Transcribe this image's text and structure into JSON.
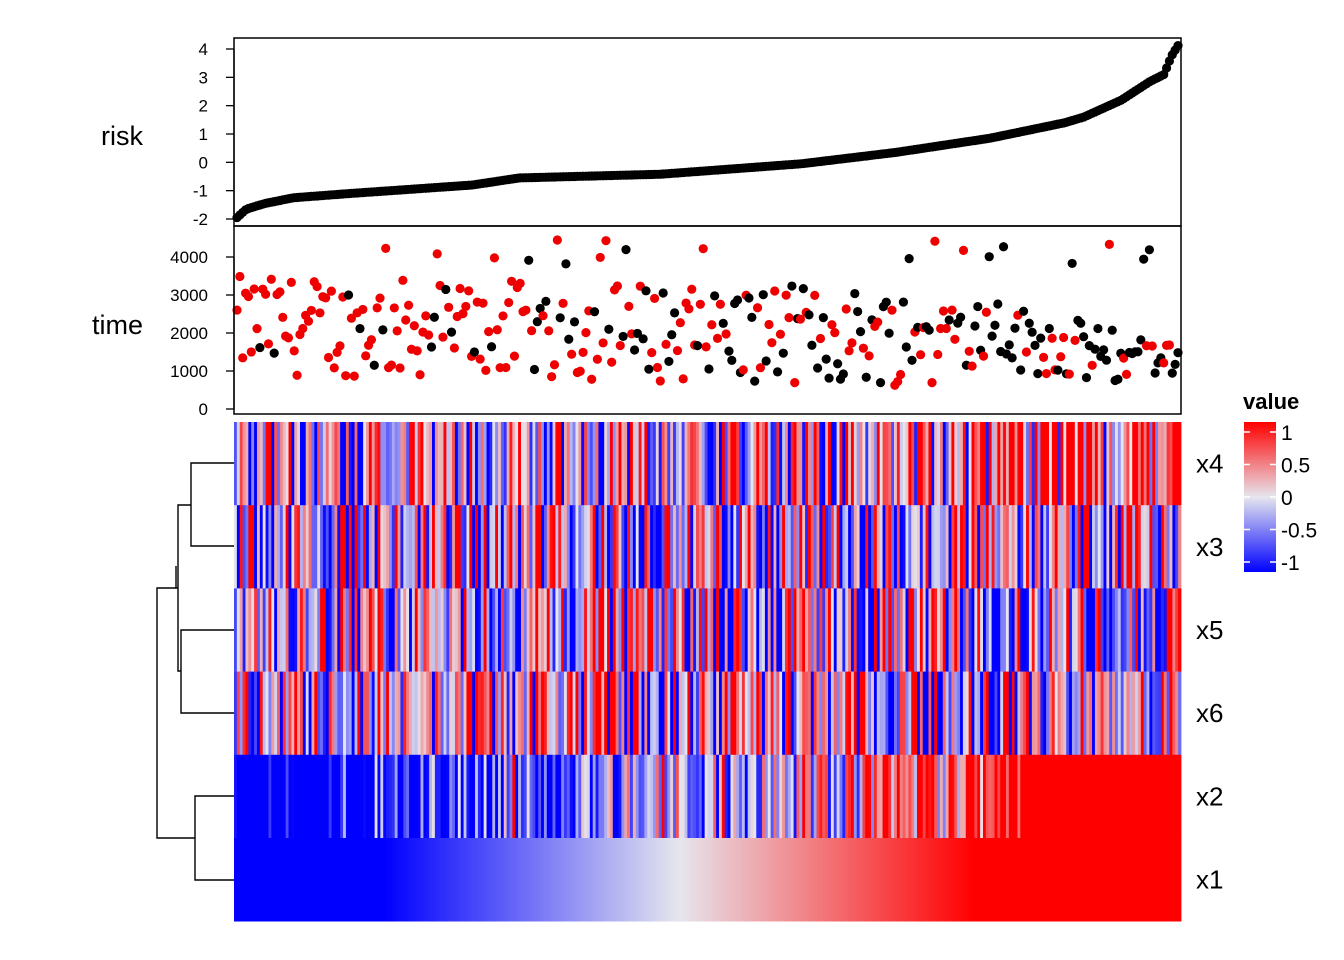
{
  "chart_data": [
    {
      "type": "scatter",
      "ylabel": "risk",
      "ylim": [
        -2,
        4.2
      ],
      "yticks": [
        4,
        3,
        2,
        1,
        0,
        -1,
        -2
      ],
      "point_color": "#000000",
      "n": 330,
      "description_of_x": "samples ordered by increasing risk score",
      "y_quantiles": {
        "0.00": -1.95,
        "0.01": -1.65,
        "0.03": -1.45,
        "0.06": -1.25,
        "0.12": -1.1,
        "0.25": -0.8,
        "0.30": -0.55,
        "0.45": -0.42,
        "0.60": -0.05,
        "0.70": 0.35,
        "0.80": 0.85,
        "0.88": 1.4,
        "0.90": 1.6,
        "0.94": 2.2,
        "0.97": 2.85,
        "0.985": 3.1,
        "0.993": 3.75,
        "1.00": 4.12
      }
    },
    {
      "type": "scatter",
      "ylabel": "time",
      "ylim": [
        -100,
        4700
      ],
      "yticks": [
        4000,
        3000,
        2000,
        1000,
        0
      ],
      "status_colors": {
        "event": "#ee0000",
        "censored": "#000000"
      },
      "n": 330,
      "trend": "survival times scattered mainly between 500 and 4400, declining toward the high-risk end where most points are black and below 1300"
    },
    {
      "type": "heatmap",
      "rows": [
        "x4",
        "x3",
        "x5",
        "x6",
        "x2",
        "x1"
      ],
      "n_columns": 330,
      "value_range": [
        -1,
        1
      ],
      "colors": {
        "low": "#0000ff",
        "mid": "#e6e6ee",
        "high": "#ff0000"
      },
      "row_patterns": {
        "x4": "random, red-leaning toward the right end",
        "x3": "random mix of blue and red",
        "x5": "random mix of blue and red",
        "x6": "random mix of blue and red",
        "x2": "mostly blue on the left, mostly red on the right",
        "x1": "smooth gradient from blue (left) through white to red (right), matching risk order"
      },
      "dendrogram": "rows clustered: ((x4, x3), (x5, x6)) joined with (x2, x1)"
    }
  ],
  "legend": {
    "title": "value",
    "labels": [
      "1",
      "0.5",
      "0",
      "-0.5",
      "-1"
    ]
  }
}
